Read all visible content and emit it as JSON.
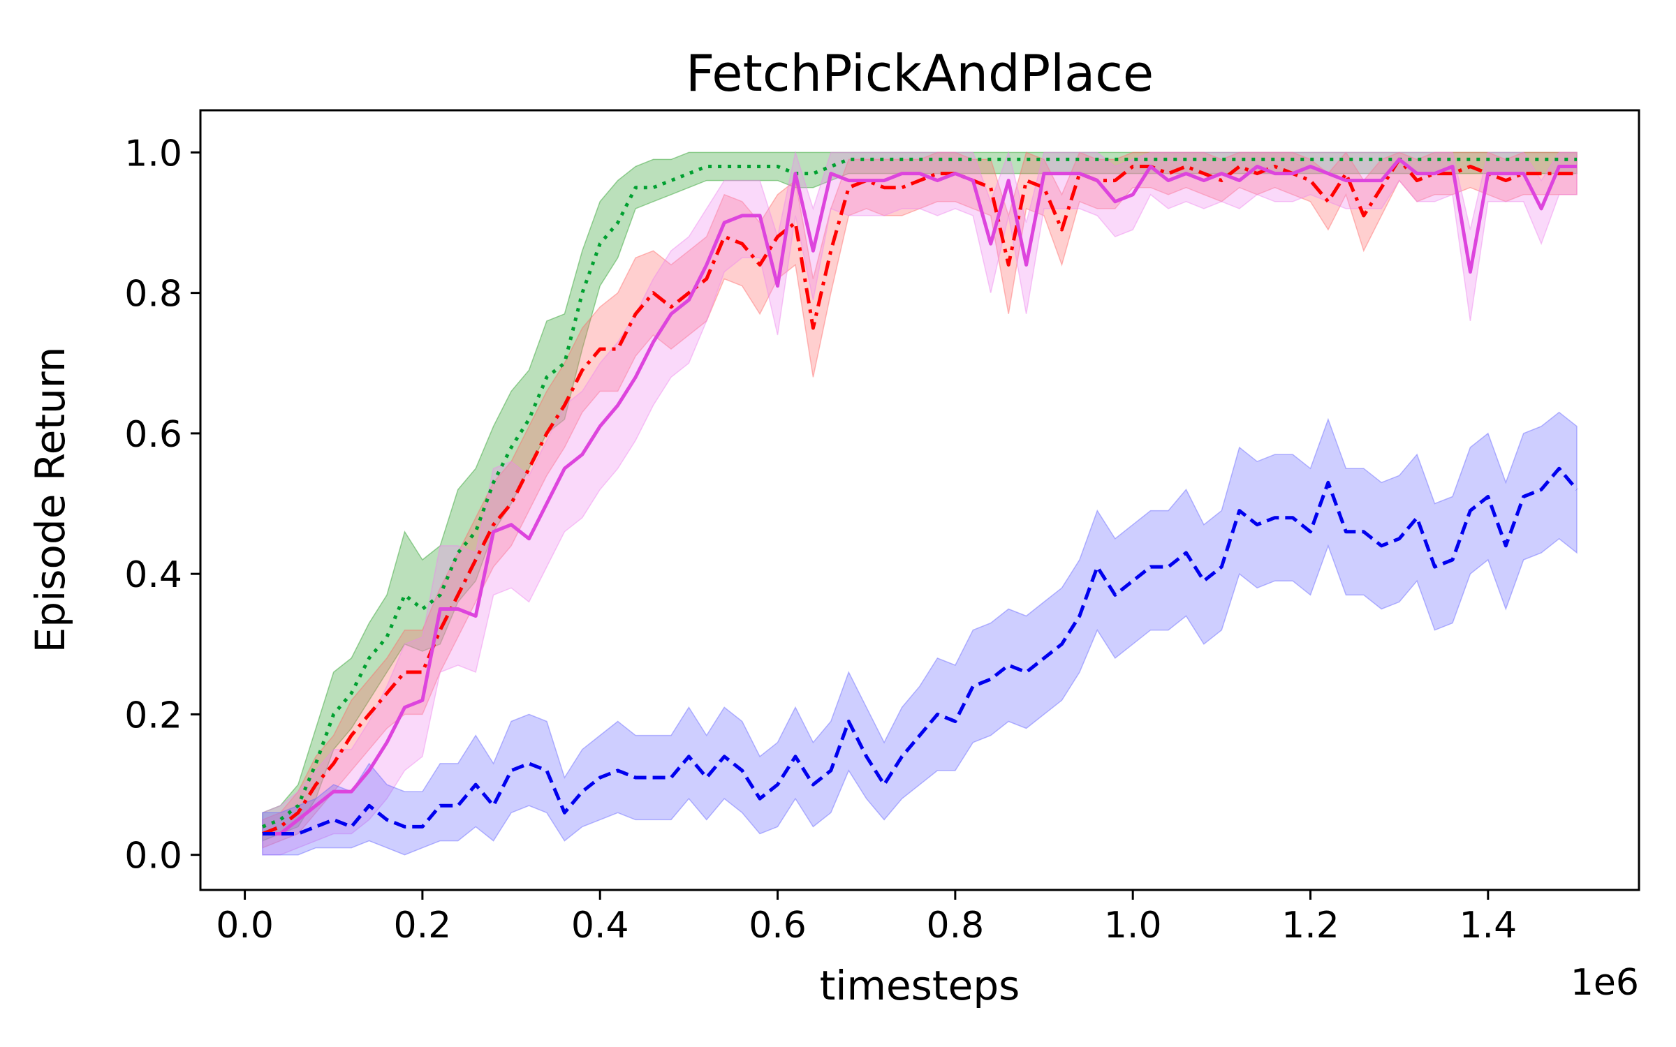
{
  "chart_data": {
    "type": "line",
    "title": "FetchPickAndPlace",
    "xlabel": "timesteps",
    "ylabel": "Episode Return",
    "x_offset_label": "1e6",
    "xlim": [
      -0.05,
      1.57
    ],
    "ylim": [
      -0.05,
      1.06
    ],
    "x_ticks": [
      0.0,
      0.2,
      0.4,
      0.6,
      0.8,
      1.0,
      1.2,
      1.4
    ],
    "x_tick_labels": [
      "0.0",
      "0.2",
      "0.4",
      "0.6",
      "0.8",
      "1.0",
      "1.2",
      "1.4"
    ],
    "y_ticks": [
      0.0,
      0.2,
      0.4,
      0.6,
      0.8,
      1.0
    ],
    "y_tick_labels": [
      "0.0",
      "0.2",
      "0.4",
      "0.6",
      "0.8",
      "1.0"
    ],
    "grid": false,
    "legend": "none",
    "x": [
      0.02,
      0.04,
      0.06,
      0.08,
      0.1,
      0.12,
      0.14,
      0.16,
      0.18,
      0.2,
      0.22,
      0.24,
      0.26,
      0.28,
      0.3,
      0.32,
      0.34,
      0.36,
      0.38,
      0.4,
      0.42,
      0.44,
      0.46,
      0.48,
      0.5,
      0.52,
      0.54,
      0.56,
      0.58,
      0.6,
      0.62,
      0.64,
      0.66,
      0.68,
      0.7,
      0.72,
      0.74,
      0.76,
      0.78,
      0.8,
      0.82,
      0.84,
      0.86,
      0.88,
      0.9,
      0.92,
      0.94,
      0.96,
      0.98,
      1.0,
      1.02,
      1.04,
      1.06,
      1.08,
      1.1,
      1.12,
      1.14,
      1.16,
      1.18,
      1.2,
      1.22,
      1.24,
      1.26,
      1.28,
      1.3,
      1.32,
      1.34,
      1.36,
      1.38,
      1.4,
      1.42,
      1.44,
      1.46,
      1.48,
      1.5
    ],
    "series": [
      {
        "color": "#00a030",
        "band_color": "#2ca02c",
        "dash": "dotted",
        "values": [
          0.04,
          0.05,
          0.07,
          0.13,
          0.2,
          0.23,
          0.28,
          0.31,
          0.37,
          0.35,
          0.37,
          0.43,
          0.46,
          0.53,
          0.58,
          0.62,
          0.68,
          0.7,
          0.8,
          0.87,
          0.9,
          0.95,
          0.95,
          0.96,
          0.97,
          0.98,
          0.98,
          0.98,
          0.98,
          0.98,
          0.97,
          0.97,
          0.98,
          0.99,
          0.99,
          0.99,
          0.99,
          0.99,
          0.99,
          0.99,
          0.99,
          0.99,
          0.99,
          0.99,
          0.99,
          0.99,
          0.99,
          0.99,
          0.99,
          0.99,
          0.99,
          0.99,
          0.99,
          0.99,
          0.99,
          0.99,
          0.99,
          0.99,
          0.99,
          0.99,
          0.99,
          0.99,
          0.99,
          0.99,
          0.99,
          0.99,
          0.99,
          0.99,
          0.99,
          0.99,
          0.99,
          0.99,
          0.99,
          0.99,
          0.99
        ],
        "lower": [
          0.02,
          0.03,
          0.04,
          0.08,
          0.15,
          0.18,
          0.22,
          0.26,
          0.3,
          0.29,
          0.3,
          0.36,
          0.39,
          0.46,
          0.5,
          0.55,
          0.6,
          0.62,
          0.72,
          0.81,
          0.85,
          0.92,
          0.93,
          0.94,
          0.95,
          0.96,
          0.96,
          0.96,
          0.96,
          0.96,
          0.95,
          0.95,
          0.96,
          0.97,
          0.97,
          0.97,
          0.97,
          0.97,
          0.97,
          0.97,
          0.97,
          0.97,
          0.97,
          0.97,
          0.97,
          0.97,
          0.97,
          0.97,
          0.97,
          0.97,
          0.97,
          0.97,
          0.97,
          0.97,
          0.97,
          0.97,
          0.97,
          0.97,
          0.97,
          0.97,
          0.97,
          0.97,
          0.97,
          0.97,
          0.97,
          0.97,
          0.97,
          0.97,
          0.97,
          0.97,
          0.97,
          0.97,
          0.97,
          0.97,
          0.97
        ],
        "upper": [
          0.06,
          0.07,
          0.1,
          0.18,
          0.26,
          0.28,
          0.33,
          0.37,
          0.46,
          0.42,
          0.44,
          0.52,
          0.55,
          0.61,
          0.66,
          0.69,
          0.76,
          0.77,
          0.86,
          0.93,
          0.96,
          0.98,
          0.99,
          0.99,
          1.0,
          1.0,
          1.0,
          1.0,
          1.0,
          1.0,
          1.0,
          1.0,
          1.0,
          1.0,
          1.0,
          1.0,
          1.0,
          1.0,
          1.0,
          1.0,
          1.0,
          1.0,
          1.0,
          1.0,
          1.0,
          1.0,
          1.0,
          1.0,
          1.0,
          1.0,
          1.0,
          1.0,
          1.0,
          1.0,
          1.0,
          1.0,
          1.0,
          1.0,
          1.0,
          1.0,
          1.0,
          1.0,
          1.0,
          1.0,
          1.0,
          1.0,
          1.0,
          1.0,
          1.0,
          1.0,
          1.0,
          1.0,
          1.0,
          1.0,
          1.0
        ]
      },
      {
        "color": "#ff0000",
        "band_color": "#ff6a6a",
        "dash": "dashdot",
        "values": [
          0.03,
          0.04,
          0.06,
          0.1,
          0.13,
          0.17,
          0.2,
          0.23,
          0.26,
          0.26,
          0.32,
          0.37,
          0.42,
          0.47,
          0.5,
          0.55,
          0.6,
          0.64,
          0.69,
          0.72,
          0.72,
          0.77,
          0.8,
          0.78,
          0.8,
          0.82,
          0.88,
          0.87,
          0.84,
          0.88,
          0.9,
          0.75,
          0.86,
          0.95,
          0.96,
          0.95,
          0.95,
          0.96,
          0.97,
          0.97,
          0.96,
          0.95,
          0.84,
          0.96,
          0.95,
          0.89,
          0.97,
          0.96,
          0.96,
          0.98,
          0.98,
          0.97,
          0.98,
          0.97,
          0.96,
          0.98,
          0.97,
          0.98,
          0.97,
          0.96,
          0.93,
          0.97,
          0.91,
          0.95,
          0.99,
          0.96,
          0.97,
          0.97,
          0.98,
          0.97,
          0.96,
          0.97,
          0.97,
          0.97,
          0.97
        ],
        "lower": [
          0.01,
          0.02,
          0.03,
          0.06,
          0.09,
          0.12,
          0.15,
          0.18,
          0.2,
          0.2,
          0.26,
          0.31,
          0.36,
          0.41,
          0.44,
          0.49,
          0.54,
          0.58,
          0.63,
          0.66,
          0.66,
          0.71,
          0.74,
          0.72,
          0.74,
          0.76,
          0.82,
          0.81,
          0.77,
          0.82,
          0.84,
          0.68,
          0.8,
          0.91,
          0.92,
          0.91,
          0.91,
          0.92,
          0.93,
          0.93,
          0.92,
          0.91,
          0.77,
          0.92,
          0.91,
          0.84,
          0.93,
          0.92,
          0.92,
          0.95,
          0.95,
          0.94,
          0.95,
          0.94,
          0.93,
          0.95,
          0.94,
          0.95,
          0.94,
          0.93,
          0.89,
          0.94,
          0.86,
          0.91,
          0.96,
          0.93,
          0.94,
          0.94,
          0.95,
          0.94,
          0.93,
          0.94,
          0.94,
          0.94,
          0.94
        ],
        "upper": [
          0.05,
          0.06,
          0.09,
          0.14,
          0.17,
          0.22,
          0.25,
          0.28,
          0.32,
          0.32,
          0.38,
          0.43,
          0.48,
          0.53,
          0.56,
          0.61,
          0.66,
          0.7,
          0.75,
          0.78,
          0.8,
          0.85,
          0.86,
          0.84,
          0.86,
          0.88,
          0.94,
          0.93,
          0.9,
          0.94,
          0.96,
          0.82,
          0.92,
          0.99,
          0.99,
          0.99,
          0.99,
          0.99,
          1.0,
          1.0,
          0.99,
          0.99,
          0.91,
          1.0,
          0.99,
          0.94,
          1.0,
          0.99,
          0.99,
          1.0,
          1.0,
          1.0,
          1.0,
          1.0,
          0.99,
          1.0,
          1.0,
          1.0,
          1.0,
          0.99,
          0.97,
          1.0,
          0.96,
          0.99,
          1.0,
          0.99,
          1.0,
          1.0,
          1.0,
          1.0,
          0.99,
          1.0,
          1.0,
          1.0,
          1.0
        ]
      },
      {
        "color": "#dd44dd",
        "band_color": "#ee88ee",
        "dash": "solid",
        "values": [
          0.03,
          0.03,
          0.05,
          0.07,
          0.09,
          0.09,
          0.12,
          0.16,
          0.21,
          0.22,
          0.35,
          0.35,
          0.34,
          0.46,
          0.47,
          0.45,
          0.5,
          0.55,
          0.57,
          0.61,
          0.64,
          0.68,
          0.73,
          0.77,
          0.79,
          0.84,
          0.9,
          0.91,
          0.91,
          0.81,
          0.97,
          0.86,
          0.97,
          0.96,
          0.96,
          0.96,
          0.97,
          0.97,
          0.96,
          0.97,
          0.96,
          0.87,
          0.96,
          0.84,
          0.97,
          0.97,
          0.97,
          0.96,
          0.93,
          0.94,
          0.98,
          0.96,
          0.97,
          0.96,
          0.97,
          0.96,
          0.98,
          0.97,
          0.97,
          0.98,
          0.97,
          0.96,
          0.96,
          0.96,
          0.99,
          0.97,
          0.97,
          0.98,
          0.83,
          0.97,
          0.97,
          0.97,
          0.92,
          0.98,
          0.98
        ],
        "lower": [
          0.0,
          0.0,
          0.01,
          0.02,
          0.03,
          0.03,
          0.05,
          0.08,
          0.12,
          0.14,
          0.26,
          0.27,
          0.26,
          0.37,
          0.38,
          0.36,
          0.41,
          0.46,
          0.48,
          0.52,
          0.55,
          0.59,
          0.64,
          0.68,
          0.7,
          0.76,
          0.83,
          0.85,
          0.85,
          0.74,
          0.91,
          0.79,
          0.92,
          0.91,
          0.91,
          0.91,
          0.92,
          0.92,
          0.91,
          0.92,
          0.91,
          0.8,
          0.91,
          0.77,
          0.92,
          0.92,
          0.92,
          0.91,
          0.88,
          0.89,
          0.94,
          0.92,
          0.93,
          0.92,
          0.93,
          0.92,
          0.94,
          0.93,
          0.93,
          0.94,
          0.93,
          0.92,
          0.92,
          0.92,
          0.96,
          0.93,
          0.93,
          0.94,
          0.76,
          0.93,
          0.93,
          0.93,
          0.87,
          0.94,
          0.94
        ],
        "upper": [
          0.06,
          0.07,
          0.09,
          0.12,
          0.15,
          0.15,
          0.19,
          0.24,
          0.3,
          0.31,
          0.44,
          0.44,
          0.43,
          0.55,
          0.56,
          0.54,
          0.59,
          0.64,
          0.66,
          0.7,
          0.73,
          0.77,
          0.82,
          0.86,
          0.88,
          0.92,
          0.96,
          0.96,
          0.96,
          0.88,
          1.0,
          0.92,
          1.0,
          1.0,
          1.0,
          1.0,
          1.0,
          1.0,
          1.0,
          1.0,
          1.0,
          0.93,
          1.0,
          0.9,
          1.0,
          1.0,
          1.0,
          1.0,
          0.98,
          0.99,
          1.0,
          1.0,
          1.0,
          1.0,
          1.0,
          1.0,
          1.0,
          1.0,
          1.0,
          1.0,
          1.0,
          1.0,
          1.0,
          1.0,
          1.0,
          1.0,
          1.0,
          1.0,
          0.89,
          1.0,
          1.0,
          1.0,
          0.96,
          1.0,
          1.0
        ]
      },
      {
        "color": "#0000ee",
        "band_color": "#6666ff",
        "dash": "dashed",
        "values": [
          0.03,
          0.03,
          0.03,
          0.04,
          0.05,
          0.04,
          0.07,
          0.05,
          0.04,
          0.04,
          0.07,
          0.07,
          0.1,
          0.07,
          0.12,
          0.13,
          0.12,
          0.06,
          0.09,
          0.11,
          0.12,
          0.11,
          0.11,
          0.11,
          0.14,
          0.11,
          0.14,
          0.12,
          0.08,
          0.1,
          0.14,
          0.1,
          0.12,
          0.19,
          0.14,
          0.1,
          0.14,
          0.17,
          0.2,
          0.19,
          0.24,
          0.25,
          0.27,
          0.26,
          0.28,
          0.3,
          0.34,
          0.41,
          0.37,
          0.39,
          0.41,
          0.41,
          0.43,
          0.39,
          0.41,
          0.49,
          0.47,
          0.48,
          0.48,
          0.46,
          0.53,
          0.46,
          0.46,
          0.44,
          0.45,
          0.48,
          0.41,
          0.42,
          0.49,
          0.51,
          0.44,
          0.51,
          0.52,
          0.55,
          0.52
        ],
        "lower": [
          0.0,
          0.0,
          0.0,
          0.01,
          0.01,
          0.01,
          0.02,
          0.01,
          0.0,
          0.01,
          0.02,
          0.02,
          0.04,
          0.02,
          0.06,
          0.07,
          0.06,
          0.02,
          0.04,
          0.05,
          0.06,
          0.05,
          0.05,
          0.05,
          0.08,
          0.05,
          0.08,
          0.06,
          0.03,
          0.04,
          0.08,
          0.04,
          0.06,
          0.12,
          0.08,
          0.05,
          0.08,
          0.1,
          0.12,
          0.12,
          0.16,
          0.17,
          0.19,
          0.18,
          0.2,
          0.22,
          0.26,
          0.32,
          0.28,
          0.3,
          0.32,
          0.32,
          0.34,
          0.3,
          0.32,
          0.4,
          0.38,
          0.39,
          0.39,
          0.37,
          0.44,
          0.37,
          0.37,
          0.35,
          0.36,
          0.39,
          0.32,
          0.33,
          0.4,
          0.42,
          0.35,
          0.42,
          0.43,
          0.45,
          0.43
        ],
        "upper": [
          0.06,
          0.06,
          0.07,
          0.08,
          0.1,
          0.09,
          0.13,
          0.1,
          0.09,
          0.09,
          0.13,
          0.13,
          0.17,
          0.13,
          0.19,
          0.2,
          0.19,
          0.11,
          0.15,
          0.17,
          0.19,
          0.17,
          0.17,
          0.17,
          0.21,
          0.17,
          0.21,
          0.19,
          0.14,
          0.16,
          0.21,
          0.16,
          0.19,
          0.26,
          0.21,
          0.16,
          0.21,
          0.24,
          0.28,
          0.27,
          0.32,
          0.33,
          0.35,
          0.34,
          0.36,
          0.38,
          0.42,
          0.49,
          0.45,
          0.47,
          0.49,
          0.49,
          0.52,
          0.47,
          0.49,
          0.58,
          0.56,
          0.57,
          0.57,
          0.55,
          0.62,
          0.55,
          0.55,
          0.53,
          0.54,
          0.57,
          0.5,
          0.51,
          0.58,
          0.6,
          0.53,
          0.6,
          0.61,
          0.63,
          0.61
        ]
      }
    ]
  }
}
